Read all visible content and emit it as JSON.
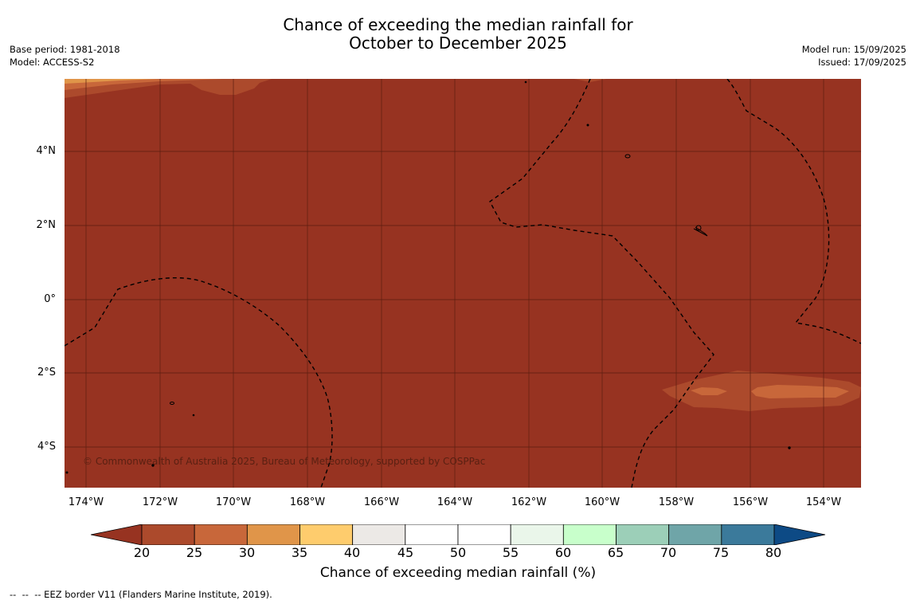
{
  "title_line1": "Chance of exceeding the median rainfall for",
  "title_line2": "October to December 2025",
  "meta_left": {
    "base_period": "Base period: 1981-2018",
    "model": "Model: ACCESS-S2"
  },
  "meta_right": {
    "model_run": "Model run: 15/09/2025",
    "issued": "Issued: 17/09/2025"
  },
  "map": {
    "lat_labels": [
      "4°N",
      "2°N",
      "0°",
      "2°S",
      "4°S"
    ],
    "lon_labels": [
      "174°W",
      "172°W",
      "170°W",
      "168°W",
      "166°W",
      "164°W",
      "162°W",
      "160°W",
      "158°W",
      "156°W",
      "154°W"
    ],
    "copyright": "© Commonwealth of Australia 2025, Bureau of Meteorology, supported by COSPPac",
    "background_color": "#973321",
    "grid_color": "#5a1e10"
  },
  "colorbar": {
    "ticks": [
      "20",
      "25",
      "30",
      "35",
      "40",
      "45",
      "50",
      "55",
      "60",
      "65",
      "70",
      "75",
      "80"
    ],
    "colors": [
      "#973321",
      "#ac4a2c",
      "#c8673a",
      "#e09549",
      "#fecc6d",
      "#ece9e6",
      "#ffffff",
      "#ffffff",
      "#eaf6ea",
      "#c8ffcb",
      "#9ccfb8",
      "#6fa5a8",
      "#3b7a9b",
      "#0d4a85"
    ],
    "label": "Chance of exceeding median rainfall (%)"
  },
  "eez_note": "--  --  -- EEZ border V11 (Flanders Marine Institute, 2019)."
}
